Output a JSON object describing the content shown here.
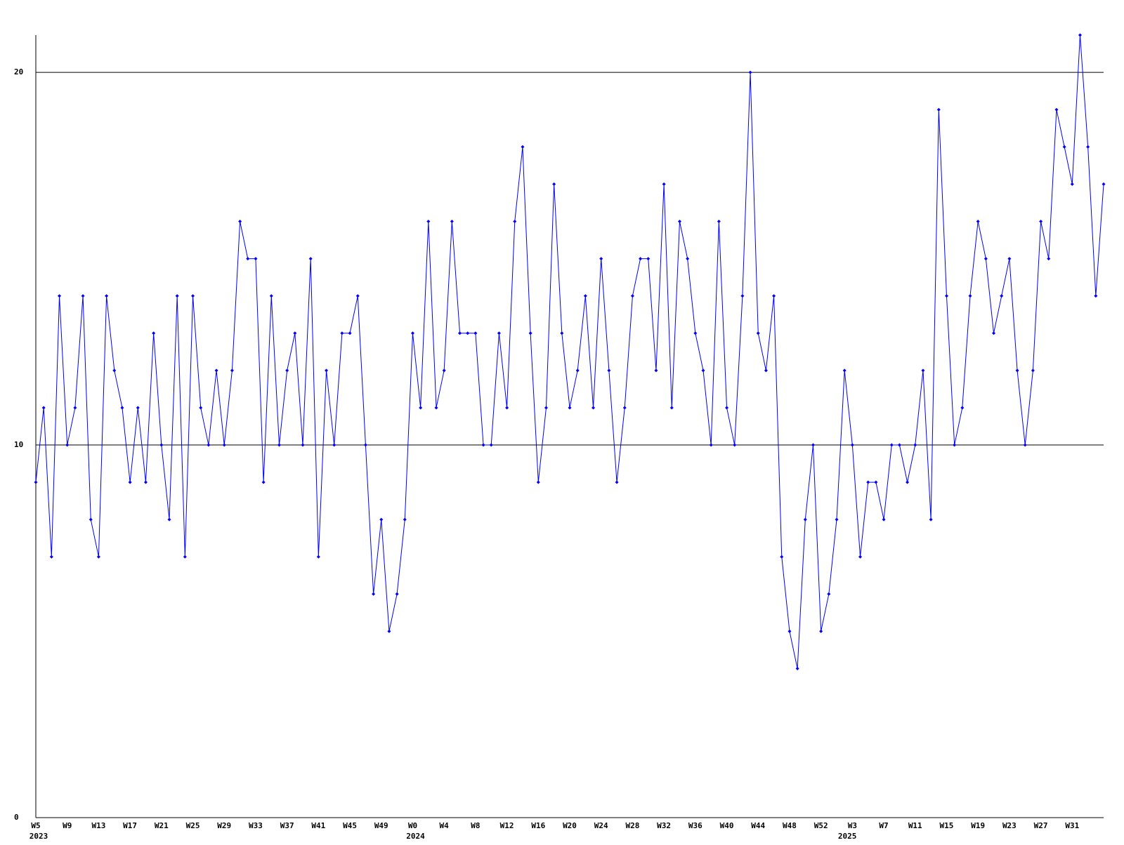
{
  "chart_data": {
    "type": "line",
    "categories": [
      "W5",
      null,
      null,
      null,
      "W9",
      null,
      null,
      null,
      "W13",
      null,
      null,
      null,
      "W17",
      null,
      null,
      null,
      "W21",
      null,
      null,
      null,
      "W25",
      null,
      null,
      null,
      "W29",
      null,
      null,
      null,
      "W33",
      null,
      null,
      null,
      "W37",
      null,
      null,
      null,
      "W41",
      null,
      null,
      null,
      "W45",
      null,
      null,
      null,
      "W49",
      null,
      null,
      null,
      "W0",
      null,
      null,
      null,
      "W4",
      null,
      null,
      null,
      "W8",
      null,
      null,
      null,
      "W12",
      null,
      null,
      null,
      "W16",
      null,
      null,
      null,
      "W20",
      null,
      null,
      null,
      "W24",
      null,
      null,
      null,
      "W28",
      null,
      null,
      null,
      "W32",
      null,
      null,
      null,
      "W36",
      null,
      null,
      null,
      "W40",
      null,
      null,
      null,
      "W44",
      null,
      null,
      null,
      "W48",
      null,
      null,
      null,
      "W52",
      null,
      null,
      null,
      "W3",
      null,
      null,
      null,
      "W7",
      null,
      null,
      null,
      "W11",
      null,
      null,
      null,
      "W15",
      null,
      null,
      null,
      "W19",
      null,
      null,
      null,
      "W23",
      null,
      null,
      null,
      "W27",
      null,
      null,
      null,
      "W31",
      null,
      null,
      null,
      null
    ],
    "year_categories": [
      "2023",
      null,
      null,
      null,
      null,
      null,
      null,
      null,
      null,
      null,
      null,
      null,
      null,
      null,
      null,
      null,
      null,
      null,
      null,
      null,
      null,
      null,
      null,
      null,
      null,
      null,
      null,
      null,
      null,
      null,
      null,
      null,
      null,
      null,
      null,
      null,
      null,
      null,
      null,
      null,
      null,
      null,
      null,
      null,
      null,
      null,
      null,
      null,
      "2024",
      null,
      null,
      null,
      null,
      null,
      null,
      null,
      null,
      null,
      null,
      null,
      null,
      null,
      null,
      null,
      null,
      null,
      null,
      null,
      null,
      null,
      null,
      null,
      null,
      null,
      null,
      null,
      null,
      null,
      null,
      null,
      null,
      null,
      null,
      null,
      null,
      null,
      null,
      null,
      null,
      null,
      null,
      null,
      null,
      null,
      null,
      null,
      null,
      null,
      null,
      null,
      null,
      null,
      null,
      "2025",
      null,
      null,
      null,
      null,
      null,
      null,
      null,
      null,
      null,
      null,
      null,
      null,
      null,
      null,
      null,
      null,
      null,
      null,
      null,
      null,
      null,
      null,
      null,
      null,
      null,
      null,
      null,
      null,
      null,
      null,
      null,
      null,
      null,
      null,
      null
    ],
    "series": [
      {
        "color": "#0000ff",
        "values": [
          9,
          11,
          7,
          14,
          10,
          11,
          14,
          8,
          7,
          14,
          12,
          11,
          9,
          11,
          9,
          13,
          10,
          8,
          14,
          7,
          14,
          11,
          10,
          12,
          10,
          12,
          16,
          15,
          15,
          9,
          14,
          10,
          12,
          13,
          10,
          15,
          7,
          12,
          10,
          13,
          13,
          14,
          10,
          6,
          8,
          5,
          6,
          8,
          13,
          11,
          16,
          11,
          12,
          16,
          13,
          13,
          13,
          10,
          10,
          13,
          11,
          16,
          18,
          13,
          9,
          11,
          17,
          13,
          11,
          12,
          14,
          11,
          15,
          12,
          9,
          11,
          14,
          15,
          15,
          12,
          17,
          11,
          16,
          15,
          13,
          12,
          10,
          16,
          11,
          10,
          14,
          20,
          13,
          12,
          14,
          7,
          5,
          4,
          8,
          10,
          5,
          6,
          8,
          12,
          10,
          7,
          9,
          9,
          8,
          10,
          10,
          9,
          10,
          12,
          8,
          19,
          14,
          10,
          11,
          14,
          16,
          15,
          13,
          14,
          15,
          12,
          10,
          12,
          16,
          15,
          19,
          18,
          17,
          21,
          18,
          14,
          17
        ]
      }
    ],
    "ylim": [
      0,
      21
    ],
    "yticks": [
      0,
      10,
      20
    ],
    "grid": true
  }
}
